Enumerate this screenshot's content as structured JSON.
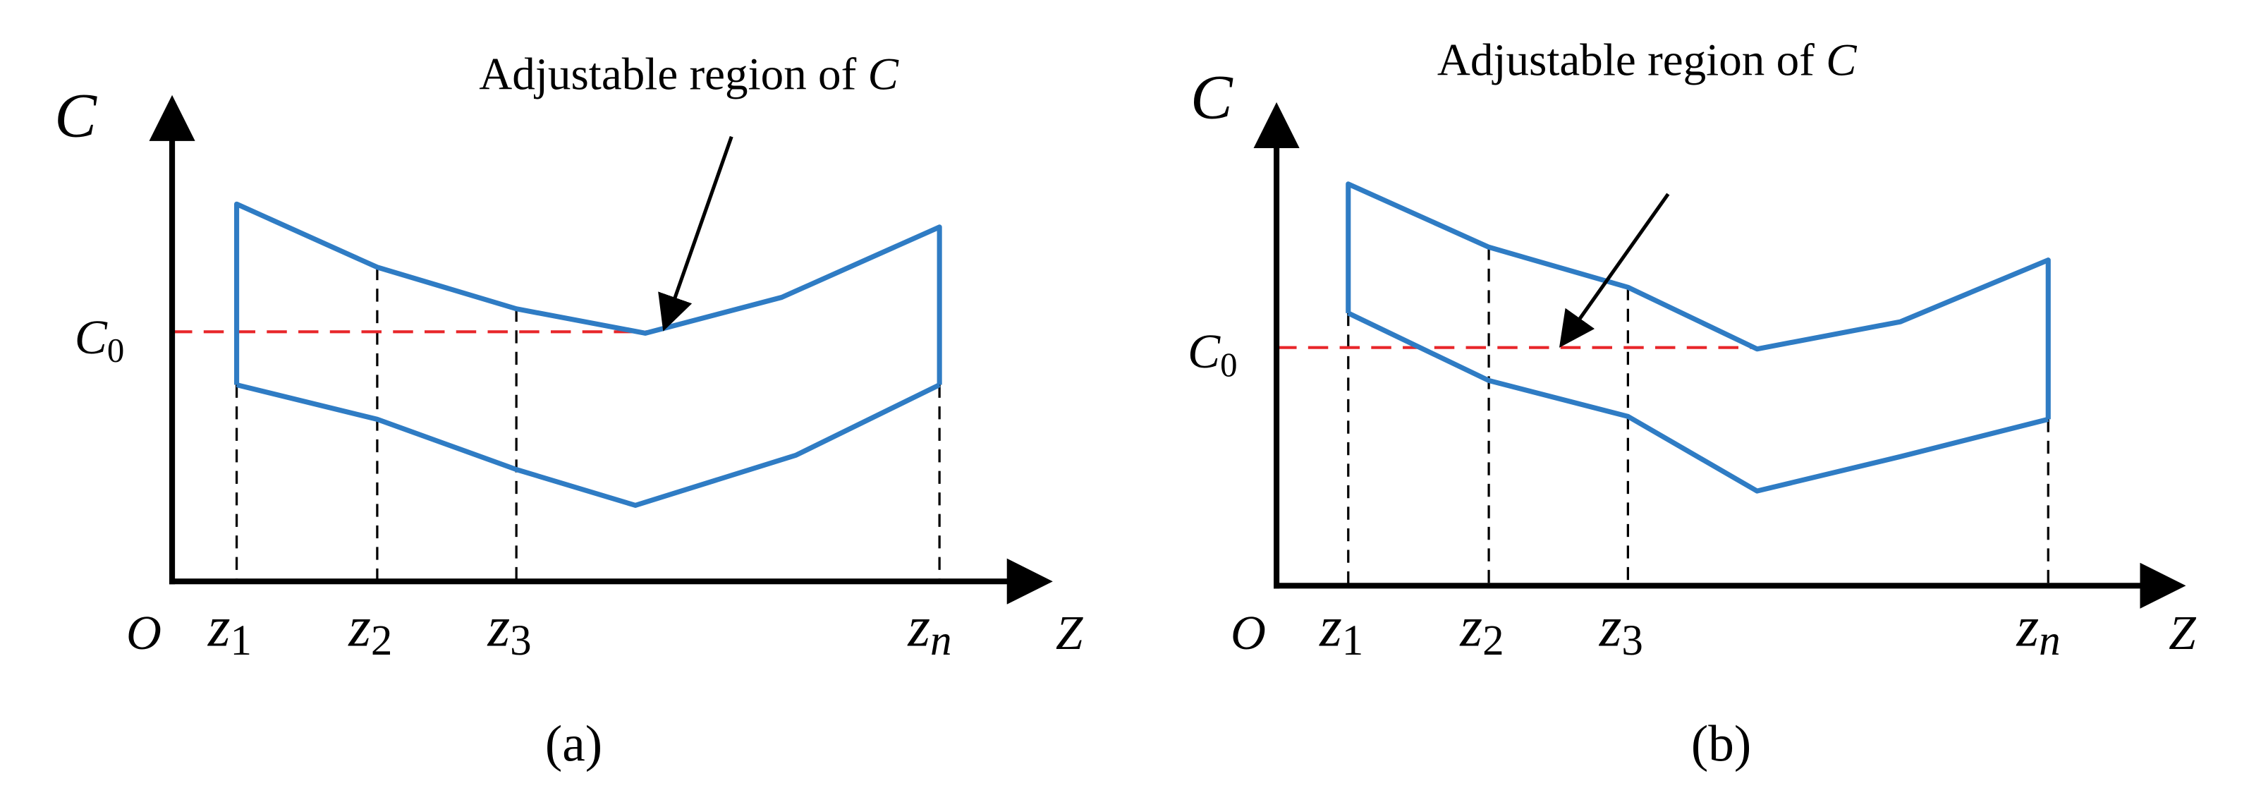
{
  "panels": [
    {
      "caption": "(a)",
      "y_label": "C",
      "x_label": "Z",
      "origin": "O",
      "c0": {
        "base": "C",
        "sub": "0"
      },
      "annotation": {
        "text": "Adjustable region of",
        "variable": "C"
      },
      "z_labels": [
        {
          "base": "z",
          "sub": "1"
        },
        {
          "base": "z",
          "sub": "2"
        },
        {
          "base": "z",
          "sub": "3"
        },
        {
          "base": "z",
          "sub": "n"
        }
      ]
    },
    {
      "caption": "(b)",
      "y_label": "C",
      "x_label": "Z",
      "origin": "O",
      "c0": {
        "base": "C",
        "sub": "0"
      },
      "annotation": {
        "text": "Adjustable region of",
        "variable": "C"
      },
      "z_labels": [
        {
          "base": "z",
          "sub": "1"
        },
        {
          "base": "z",
          "sub": "2"
        },
        {
          "base": "z",
          "sub": "3"
        },
        {
          "base": "z",
          "sub": "n"
        }
      ]
    }
  ]
}
